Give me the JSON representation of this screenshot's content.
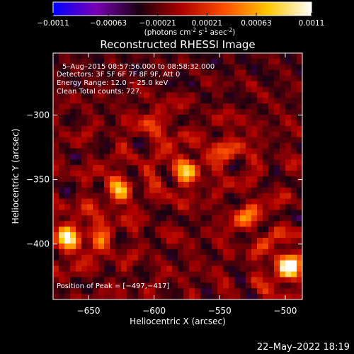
{
  "colorbar": {
    "ticks": [
      "-0.0011",
      "-0.00063",
      "-0.00021",
      "0.00021",
      "0.00063",
      "0.0011"
    ],
    "tick_values": [
      -0.0011,
      -0.00063,
      -0.00021,
      0.00021,
      0.00063,
      0.0011
    ],
    "range": [
      -0.0011,
      0.0011
    ],
    "units_line": "(photons cm",
    "units_sup1": "-2",
    "units_mid": " s",
    "units_sup2": "-1",
    "units_end": " asec",
    "units_sup3": "-2",
    "units_close": ")",
    "colormap": [
      "#0000ff",
      "#7a00b5",
      "#1a0010",
      "#b00000",
      "#ff5000",
      "#ffc800",
      "#ffffff"
    ]
  },
  "chart_data": {
    "type": "heatmap",
    "title": "Reconstructed RHESSI Image",
    "xlabel": "Heliocentric X (arcsec)",
    "ylabel": "Heliocentric Y (arcsec)",
    "xlim": [
      -677,
      -487
    ],
    "ylim": [
      -443,
      -252
    ],
    "x_ticks": [
      -650,
      -600,
      -550,
      -500
    ],
    "x_tick_labels": [
      "−650",
      "−600",
      "−550",
      "−500"
    ],
    "y_ticks": [
      -300,
      -350,
      -400
    ],
    "y_tick_labels": [
      "−300",
      "−350",
      "−400"
    ],
    "annotations": [
      "5–Aug–2015 08:57:56.000 to 08:58:32.000",
      "Detectors: 3F 5F 6F 7F 8F 9F, Att 0",
      "Energy Range: 12.0 − 25.0 keV",
      "Clean    Total counts: 727."
    ],
    "peak_label": "Position of Peak = [−497,−417]",
    "peak": [
      -497,
      -417
    ],
    "total_counts": 727,
    "energy_range_kev": [
      12.0,
      25.0
    ],
    "sources": [
      {
        "x": -497,
        "y": -417,
        "amp": 1.0
      },
      {
        "x": -666,
        "y": -395,
        "amp": 0.75
      },
      {
        "x": -577,
        "y": -343,
        "amp": 0.65
      },
      {
        "x": -640,
        "y": -395,
        "amp": 0.35
      },
      {
        "x": -627,
        "y": -358,
        "amp": 0.55
      },
      {
        "x": -527,
        "y": -380,
        "amp": 0.45
      },
      {
        "x": -543,
        "y": -327,
        "amp": 0.4
      },
      {
        "x": -600,
        "y": -308,
        "amp": 0.35
      }
    ]
  },
  "footer": {
    "timestamp": "22–May–2022 18:19"
  }
}
